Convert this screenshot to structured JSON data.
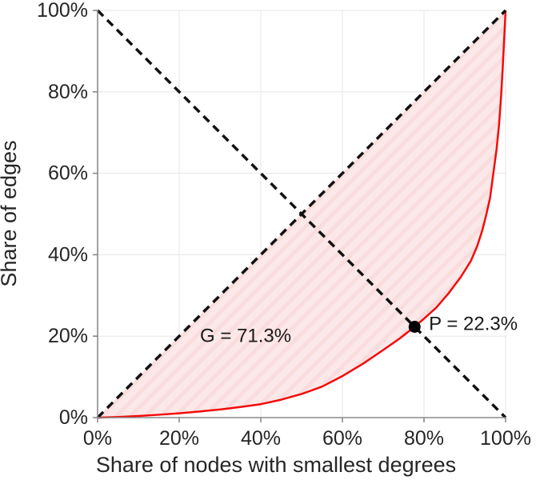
{
  "chart_data": {
    "type": "line",
    "title": "",
    "xlabel": "Share of nodes with smallest degrees",
    "ylabel": "Share of edges",
    "xlim": [
      0,
      100
    ],
    "ylim": [
      0,
      100
    ],
    "grid": true,
    "legend": "none",
    "x_tick_values": [
      0,
      20,
      40,
      60,
      80,
      100
    ],
    "x_tick_labels": [
      "0%",
      "20%",
      "40%",
      "60%",
      "80%",
      "100%"
    ],
    "y_tick_values": [
      0,
      20,
      40,
      60,
      80,
      100
    ],
    "y_tick_labels": [
      "0%",
      "20%",
      "40%",
      "60%",
      "80%",
      "100%"
    ],
    "series": [
      {
        "name": "lorenz-curve",
        "color": "#f40b0b",
        "style": "solid",
        "width": 2.5,
        "points": [
          [
            0,
            0
          ],
          [
            5,
            0.15
          ],
          [
            10,
            0.4
          ],
          [
            15,
            0.7
          ],
          [
            20,
            1.05
          ],
          [
            25,
            1.5
          ],
          [
            30,
            2.0
          ],
          [
            35,
            2.6
          ],
          [
            40,
            3.3
          ],
          [
            45,
            4.4
          ],
          [
            50,
            5.8
          ],
          [
            55,
            7.6
          ],
          [
            60,
            10.2
          ],
          [
            65,
            13.2
          ],
          [
            70,
            16.6
          ],
          [
            74,
            19.4
          ],
          [
            77.7,
            22.3
          ],
          [
            80,
            24.3
          ],
          [
            83,
            27
          ],
          [
            86,
            30.5
          ],
          [
            89,
            34.5
          ],
          [
            91.5,
            38.5
          ],
          [
            93,
            42
          ],
          [
            94.3,
            46
          ],
          [
            95.3,
            50
          ],
          [
            96.2,
            54
          ],
          [
            97,
            60
          ],
          [
            97.8,
            66
          ],
          [
            98.4,
            72
          ],
          [
            98.9,
            79
          ],
          [
            99.3,
            86
          ],
          [
            99.6,
            92
          ],
          [
            99.8,
            96
          ],
          [
            100,
            100
          ]
        ]
      },
      {
        "name": "equality-diagonal",
        "color": "#111111",
        "style": "dashed",
        "width": 3.5,
        "points": [
          [
            0,
            0
          ],
          [
            100,
            100
          ]
        ]
      },
      {
        "name": "anti-diagonal",
        "color": "#111111",
        "style": "dashed",
        "width": 3.5,
        "points": [
          [
            0,
            100
          ],
          [
            100,
            0
          ]
        ]
      }
    ],
    "fill_between": {
      "upper": "equality-diagonal",
      "lower": "lorenz-curve",
      "base_color": "#fce8e8",
      "hatch_color": "#f9dddd"
    },
    "marker": {
      "x": 77.7,
      "y": 22.3,
      "color": "#000000",
      "radius": 7.5
    },
    "annotations": [
      {
        "id": "gini-value",
        "text": "G = 71.3%",
        "x": 25.1,
        "y": 20.0,
        "anchor": "start"
      },
      {
        "id": "p-value",
        "text": "P = 22.3%",
        "x": 81.2,
        "y": 23.0,
        "anchor": "start"
      }
    ],
    "axis_color": "#8a8a8a",
    "grid_color": "#e6e6e6",
    "tick_length": 6
  }
}
